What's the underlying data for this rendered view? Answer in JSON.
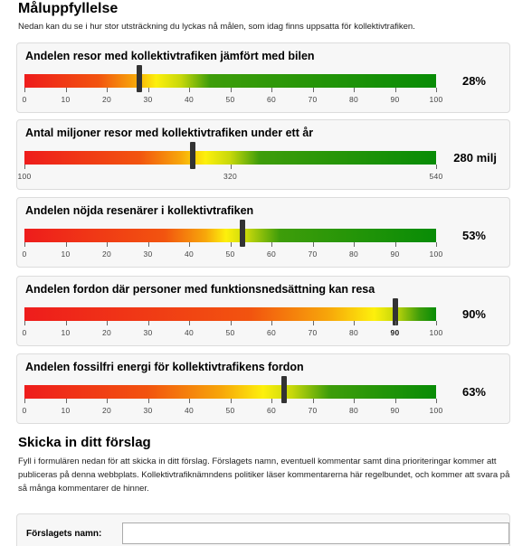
{
  "header": {
    "title": "Måluppfyllelse",
    "intro": "Nedan kan du se i hur stor utsträckning du lyckas nå målen, som idag finns uppsatta för kollektivtrafiken."
  },
  "colors": {
    "gradient": [
      "#ee1c1c",
      "#f2540f",
      "#f7a70a",
      "#fdf00c",
      "#c7d80b",
      "#3e9d0a",
      "#088c06"
    ]
  },
  "metrics": [
    {
      "title": "Andelen resor med kollektivtrafiken jämfört med bilen",
      "value_label": "28%",
      "value": 28,
      "min": 0,
      "max": 100,
      "ticks": [
        "0",
        "10",
        "20",
        "30",
        "40",
        "50",
        "60",
        "70",
        "80",
        "90",
        "100"
      ],
      "tick_values": [
        0,
        10,
        20,
        30,
        40,
        50,
        60,
        70,
        80,
        90,
        100
      ],
      "bold_tick": null,
      "gradient_stops": [
        0,
        18,
        27,
        32,
        38,
        45,
        100
      ]
    },
    {
      "title": "Antal miljoner resor med kollektivtrafiken under ett år",
      "value_label": "280 milj",
      "value": 280,
      "min": 100,
      "max": 540,
      "ticks": [
        "100",
        "320",
        "540"
      ],
      "tick_values": [
        100,
        320,
        540
      ],
      "bold_tick": null,
      "gradient_stops": [
        0,
        28,
        38,
        44,
        50,
        57,
        100
      ]
    },
    {
      "title": "Andelen nöjda resenärer i kollektivtrafiken",
      "value_label": "53%",
      "value": 53,
      "min": 0,
      "max": 100,
      "ticks": [
        "0",
        "10",
        "20",
        "30",
        "40",
        "50",
        "60",
        "70",
        "80",
        "90",
        "100"
      ],
      "tick_values": [
        0,
        10,
        20,
        30,
        40,
        50,
        60,
        70,
        80,
        90,
        100
      ],
      "bold_tick": null,
      "gradient_stops": [
        0,
        34,
        44,
        49,
        54,
        62,
        100
      ]
    },
    {
      "title": "Andelen fordon där personer med funktionsnedsättning kan resa",
      "value_label": "90%",
      "value": 90,
      "min": 0,
      "max": 100,
      "ticks": [
        "0",
        "10",
        "20",
        "30",
        "40",
        "50",
        "60",
        "70",
        "80",
        "90",
        "100"
      ],
      "tick_values": [
        0,
        10,
        20,
        30,
        40,
        50,
        60,
        70,
        80,
        90,
        100
      ],
      "bold_tick": "90",
      "gradient_stops": [
        0,
        55,
        74,
        85,
        90,
        96,
        100
      ]
    },
    {
      "title": "Andelen fossilfri energi för kollektivtrafikens fordon",
      "value_label": "63%",
      "value": 63,
      "min": 0,
      "max": 100,
      "ticks": [
        "0",
        "10",
        "20",
        "30",
        "40",
        "50",
        "60",
        "70",
        "80",
        "90",
        "100"
      ],
      "tick_values": [
        0,
        10,
        20,
        30,
        40,
        50,
        60,
        70,
        80,
        90,
        100
      ],
      "bold_tick": null,
      "gradient_stops": [
        0,
        30,
        48,
        58,
        65,
        74,
        100
      ]
    }
  ],
  "suggest": {
    "heading": "Skicka in ditt förslag",
    "description": "Fyll i formulären nedan för att skicka in ditt förslag. Förslagets namn, eventuell kommentar samt dina prioriteringar kommer att publiceras på denna webbplats. Kollektivtrafiknämndens politiker läser kommentarerna här regelbundet, och kommer att svara på så många kommentarer de hinner.",
    "name_label": "Förslagets namn:",
    "name_value": ""
  }
}
